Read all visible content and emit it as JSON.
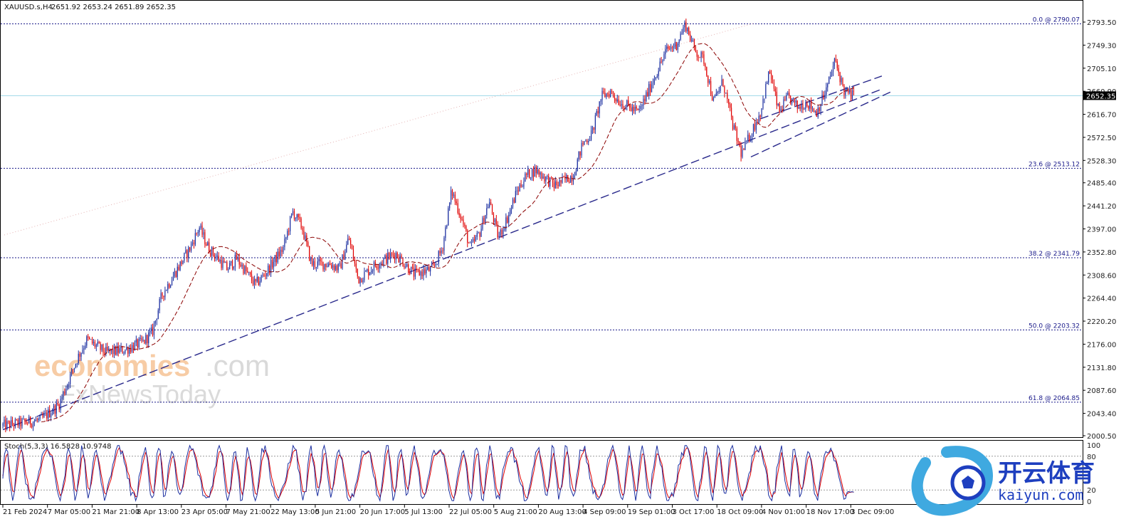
{
  "header": {
    "symbol": "XAUUSD.s,H4",
    "ohlc": "2651.92 2653.24 2651.89 2652.35"
  },
  "watermark": {
    "line1a": "economies",
    "line1b": ".com",
    "line2": "FxNewsToday"
  },
  "logo": {
    "cn": "开云体育",
    "en": "kaiyun.com"
  },
  "colors": {
    "bull": "#1c2fa0",
    "bear": "#e00000",
    "ma": "#8b0000",
    "trend": "#2a2a8c",
    "fib": "#1a1a8a",
    "current_price_line": "#9fd8e8",
    "stoch_main": "#1c2fa0",
    "stoch_signal": "#e00000"
  },
  "current_price": {
    "value": 2652.35,
    "label": "2652.35"
  },
  "chart_data": [
    {
      "type": "candlestick",
      "title": "XAUUSD.s,H4",
      "ylim": [
        2000.5,
        2793.5
      ],
      "y_ticks": [
        "2793.50",
        "2749.30",
        "2705.10",
        "2660.90",
        "2616.70",
        "2572.50",
        "2528.30",
        "2485.40",
        "2441.20",
        "2397.00",
        "2352.80",
        "2308.60",
        "2264.40",
        "2220.20",
        "2176.00",
        "2131.80",
        "2087.60",
        "2043.40",
        "2000.50"
      ],
      "x_ticks": [
        "21 Feb 2024",
        "7 Mar 05:00",
        "21 Mar 21:00",
        "8 Apr 13:00",
        "23 Apr 05:00",
        "7 May 21:00",
        "22 May 13:00",
        "5 Jun 21:00",
        "20 Jun 17:00",
        "5 Jul 13:00",
        "22 Jul 05:00",
        "5 Aug 21:00",
        "20 Aug 13:00",
        "4 Sep 09:00",
        "19 Sep 01:00",
        "3 Oct 17:00",
        "18 Oct 09:00",
        "4 Nov 01:00",
        "18 Nov 17:00",
        "3 Dec 09:00"
      ],
      "price_path": [
        [
          0,
          2020
        ],
        [
          4,
          2030
        ],
        [
          6,
          2060
        ],
        [
          8,
          2150
        ],
        [
          9,
          2185
        ],
        [
          11,
          2160
        ],
        [
          13,
          2165
        ],
        [
          15,
          2180
        ],
        [
          16,
          2200
        ],
        [
          17,
          2270
        ],
        [
          19,
          2330
        ],
        [
          20,
          2360
        ],
        [
          21,
          2400
        ],
        [
          22,
          2360
        ],
        [
          24,
          2320
        ],
        [
          25,
          2340
        ],
        [
          27,
          2290
        ],
        [
          28,
          2310
        ],
        [
          30,
          2360
        ],
        [
          31,
          2430
        ],
        [
          32,
          2400
        ],
        [
          33,
          2330
        ],
        [
          35,
          2330
        ],
        [
          36,
          2320
        ],
        [
          37,
          2380
        ],
        [
          38,
          2300
        ],
        [
          40,
          2330
        ],
        [
          42,
          2350
        ],
        [
          44,
          2310
        ],
        [
          46,
          2320
        ],
        [
          47,
          2360
        ],
        [
          48,
          2470
        ],
        [
          49,
          2420
        ],
        [
          50,
          2360
        ],
        [
          51,
          2390
        ],
        [
          52,
          2450
        ],
        [
          53,
          2380
        ],
        [
          54,
          2420
        ],
        [
          55,
          2470
        ],
        [
          56,
          2500
        ],
        [
          57,
          2510
        ],
        [
          59,
          2480
        ],
        [
          61,
          2500
        ],
        [
          62,
          2560
        ],
        [
          63,
          2580
        ],
        [
          64,
          2650
        ],
        [
          65,
          2660
        ],
        [
          66,
          2640
        ],
        [
          67,
          2630
        ],
        [
          68,
          2620
        ],
        [
          69,
          2660
        ],
        [
          70,
          2700
        ],
        [
          71,
          2740
        ],
        [
          72,
          2750
        ],
        [
          73,
          2790
        ],
        [
          74,
          2740
        ],
        [
          75,
          2720
        ],
        [
          76,
          2640
        ],
        [
          77,
          2680
        ],
        [
          78,
          2600
        ],
        [
          79,
          2540
        ],
        [
          80,
          2580
        ],
        [
          81,
          2620
        ],
        [
          82,
          2700
        ],
        [
          83,
          2620
        ],
        [
          84,
          2650
        ],
        [
          85,
          2630
        ],
        [
          86,
          2640
        ],
        [
          87,
          2620
        ],
        [
          88,
          2660
        ],
        [
          89,
          2720
        ],
        [
          90,
          2660
        ],
        [
          91,
          2652
        ]
      ],
      "moving_average": {
        "style": "dashed",
        "color": "#8b0000"
      },
      "trendlines": [
        {
          "name": "lower trendline",
          "from": [
            0,
            2012
          ],
          "to": [
            94,
            2665
          ]
        },
        {
          "name": "short support",
          "from": [
            80,
            2535
          ],
          "to": [
            95,
            2660
          ]
        },
        {
          "name": "short resistance",
          "from": [
            81,
            2608
          ],
          "to": [
            94,
            2690
          ]
        }
      ],
      "fibonacci": [
        {
          "label": "0.0 @ 2790.07",
          "value": 2790.07
        },
        {
          "label": "23.6 @ 2513.12",
          "value": 2513.12
        },
        {
          "label": "38.2 @ 2341.79",
          "value": 2341.79
        },
        {
          "label": "50.0 @ 2203.32",
          "value": 2203.32
        },
        {
          "label": "61.8 @ 2064.85",
          "value": 2064.85
        }
      ],
      "grid": false
    },
    {
      "type": "line",
      "title": "Stoch(5,3,3) 16.5828 10.9748",
      "ylim": [
        0,
        100
      ],
      "y_ticks": [
        "100",
        "80",
        "20",
        "0"
      ],
      "levels": [
        80,
        20
      ],
      "series": [
        {
          "name": "main",
          "last": 16.5828
        },
        {
          "name": "signal",
          "last": 10.9748
        }
      ]
    }
  ]
}
